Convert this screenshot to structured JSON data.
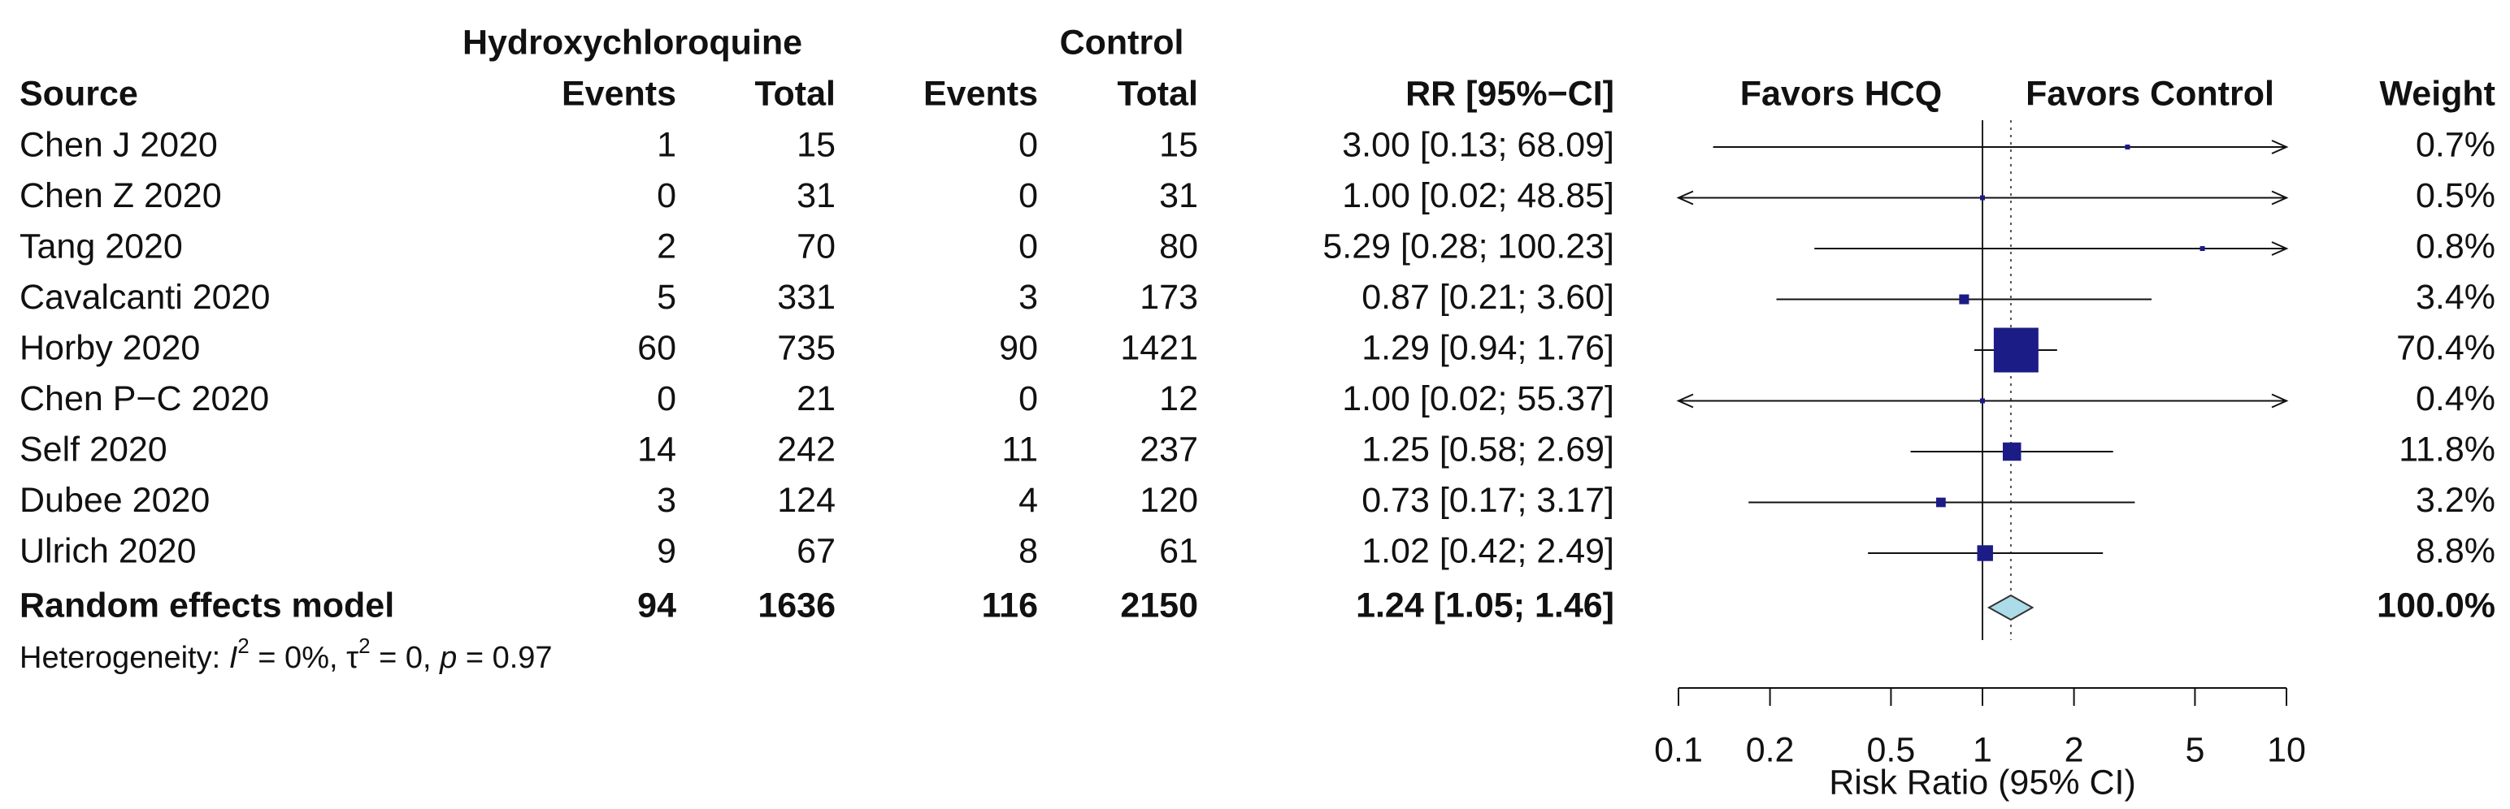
{
  "chart_data": {
    "type": "forest",
    "group_headers": [
      "Hydroxychloroquine",
      "Control"
    ],
    "columns": [
      "Source",
      "Events",
      "Total",
      "Events",
      "Total",
      "RR [95%−CI]",
      "Weight"
    ],
    "favors": [
      "Favors HCQ",
      "Favors Control"
    ],
    "studies": [
      {
        "name": "Chen J 2020",
        "events1": 1,
        "total1": 15,
        "events2": 0,
        "total2": 15,
        "rr": 3.0,
        "lower": 0.13,
        "upper": 68.09,
        "ci_label": "3.00 [0.13; 68.09]",
        "weight": 0.7,
        "weight_label": "0.7%"
      },
      {
        "name": "Chen Z 2020",
        "events1": 0,
        "total1": 31,
        "events2": 0,
        "total2": 31,
        "rr": 1.0,
        "lower": 0.02,
        "upper": 48.85,
        "ci_label": "1.00 [0.02; 48.85]",
        "weight": 0.5,
        "weight_label": "0.5%"
      },
      {
        "name": "Tang 2020",
        "events1": 2,
        "total1": 70,
        "events2": 0,
        "total2": 80,
        "rr": 5.29,
        "lower": 0.28,
        "upper": 100.23,
        "ci_label": "5.29 [0.28; 100.23]",
        "weight": 0.8,
        "weight_label": "0.8%"
      },
      {
        "name": "Cavalcanti 2020",
        "events1": 5,
        "total1": 331,
        "events2": 3,
        "total2": 173,
        "rr": 0.87,
        "lower": 0.21,
        "upper": 3.6,
        "ci_label": "0.87 [0.21; 3.60]",
        "weight": 3.4,
        "weight_label": "3.4%"
      },
      {
        "name": "Horby 2020",
        "events1": 60,
        "total1": 735,
        "events2": 90,
        "total2": 1421,
        "rr": 1.29,
        "lower": 0.94,
        "upper": 1.76,
        "ci_label": "1.29 [0.94; 1.76]",
        "weight": 70.4,
        "weight_label": "70.4%"
      },
      {
        "name": "Chen P−C 2020",
        "events1": 0,
        "total1": 21,
        "events2": 0,
        "total2": 12,
        "rr": 1.0,
        "lower": 0.02,
        "upper": 55.37,
        "ci_label": "1.00 [0.02; 55.37]",
        "weight": 0.4,
        "weight_label": "0.4%"
      },
      {
        "name": "Self 2020",
        "events1": 14,
        "total1": 242,
        "events2": 11,
        "total2": 237,
        "rr": 1.25,
        "lower": 0.58,
        "upper": 2.69,
        "ci_label": "1.25 [0.58; 2.69]",
        "weight": 11.8,
        "weight_label": "11.8%"
      },
      {
        "name": "Dubee 2020",
        "events1": 3,
        "total1": 124,
        "events2": 4,
        "total2": 120,
        "rr": 0.73,
        "lower": 0.17,
        "upper": 3.17,
        "ci_label": "0.73 [0.17; 3.17]",
        "weight": 3.2,
        "weight_label": "3.2%"
      },
      {
        "name": "Ulrich 2020",
        "events1": 9,
        "total1": 67,
        "events2": 8,
        "total2": 61,
        "rr": 1.02,
        "lower": 0.42,
        "upper": 2.49,
        "ci_label": "1.02 [0.42; 2.49]",
        "weight": 8.8,
        "weight_label": "8.8%"
      }
    ],
    "pooled": {
      "name": "Random effects model",
      "events1": 94,
      "total1": 1636,
      "events2": 116,
      "total2": 2150,
      "rr": 1.24,
      "lower": 1.05,
      "upper": 1.46,
      "ci_label": "1.24 [1.05; 1.46]",
      "weight": 100.0,
      "weight_label": "100.0%"
    },
    "heterogeneity": [
      {
        "text": "Heterogeneity: "
      },
      {
        "text": "I",
        "italic": true
      },
      {
        "text": "2",
        "sup": true
      },
      {
        "text": " = 0%, "
      },
      {
        "text": "τ"
      },
      {
        "text": "2",
        "sup": true
      },
      {
        "text": " = 0, "
      },
      {
        "text": "p",
        "italic": true
      },
      {
        "text": " = 0.97"
      }
    ],
    "log_x": true,
    "xlim": [
      0.1,
      10
    ],
    "xticks": [
      0.1,
      0.2,
      0.5,
      1,
      2,
      5,
      10
    ],
    "null_line": 1,
    "xlabel": "Risk Ratio (95% CI)",
    "square_color": "#1c1c86",
    "diamond_color": "#acdbe9"
  }
}
